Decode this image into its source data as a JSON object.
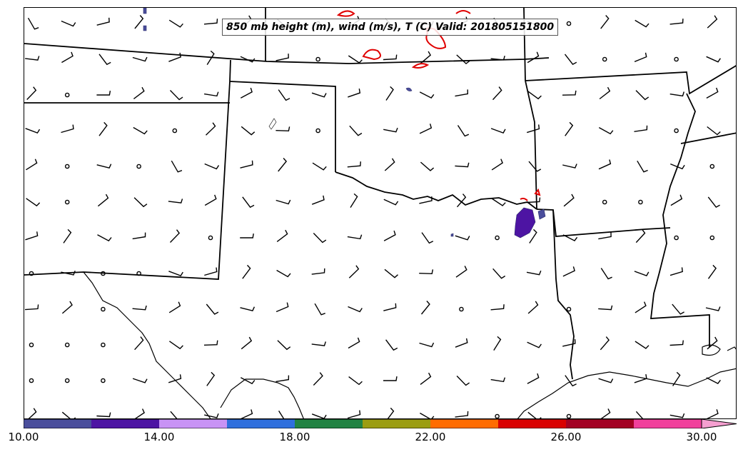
{
  "title": "850 mb height (m), wind (m/s), T (C) Valid: 201805151800",
  "colorbar": {
    "ticks": [
      "10.00",
      "14.00",
      "18.00",
      "22.00",
      "26.00",
      "30.00"
    ],
    "colors": [
      "#4a4e9c",
      "#4d14a3",
      "#c893f5",
      "#2f6fdd",
      "#218343",
      "#9b9d11",
      "#ff6c00",
      "#d90000",
      "#a30023",
      "#f1409c",
      "#f59fd0"
    ],
    "extend": "max"
  },
  "map_features": {
    "borders": "state boundaries",
    "coastline": "Gulf coast",
    "temperature_contour_color": "#e00000",
    "precip_shade_colors": [
      "#4a4e9c",
      "#4d14a3"
    ]
  },
  "wind_barbs": {
    "symbol": "barb",
    "calm_symbol": "circle"
  }
}
